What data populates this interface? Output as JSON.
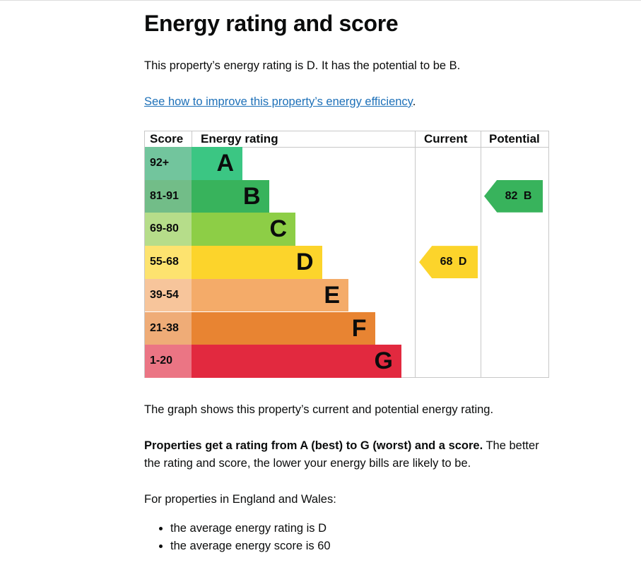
{
  "title": "Energy rating and score",
  "intro": "This property’s energy rating is D. It has the potential to be B.",
  "link": "See how to improve this property’s energy efficiency",
  "link_suffix": ".",
  "chart_data": {
    "type": "table",
    "headers": {
      "score": "Score",
      "rating": "Energy rating",
      "current": "Current",
      "potential": "Potential"
    },
    "bands": [
      {
        "score": "92+",
        "letter": "A",
        "color": "#3bc683",
        "score_color": "#72c59d"
      },
      {
        "score": "81-91",
        "letter": "B",
        "color": "#38b35c",
        "score_color": "#72bd88"
      },
      {
        "score": "69-80",
        "letter": "C",
        "color": "#8dce46",
        "score_color": "#b6dd8a"
      },
      {
        "score": "55-68",
        "letter": "D",
        "color": "#fcd42b",
        "score_color": "#fde36f"
      },
      {
        "score": "39-54",
        "letter": "E",
        "color": "#f4ab69",
        "score_color": "#f7c59b"
      },
      {
        "score": "21-38",
        "letter": "F",
        "color": "#e88432",
        "score_color": "#efac77"
      },
      {
        "score": "1-20",
        "letter": "G",
        "color": "#e2293f",
        "score_color": "#eb7584"
      }
    ],
    "current": {
      "score": 68,
      "letter": "D",
      "label": "68 D",
      "color": "#fcd42b"
    },
    "potential": {
      "score": 82,
      "letter": "B",
      "label": "82 B",
      "color": "#38b35c"
    }
  },
  "graph_note": "The graph shows this property’s current and potential energy rating.",
  "ratings_bold": "Properties get a rating from A (best) to G (worst) and a score.",
  "ratings_rest": " The better the rating and score, the lower your energy bills are likely to be.",
  "region": "For properties in England and Wales:",
  "bullets": [
    "the average energy rating is D",
    "the average energy score is 60"
  ]
}
